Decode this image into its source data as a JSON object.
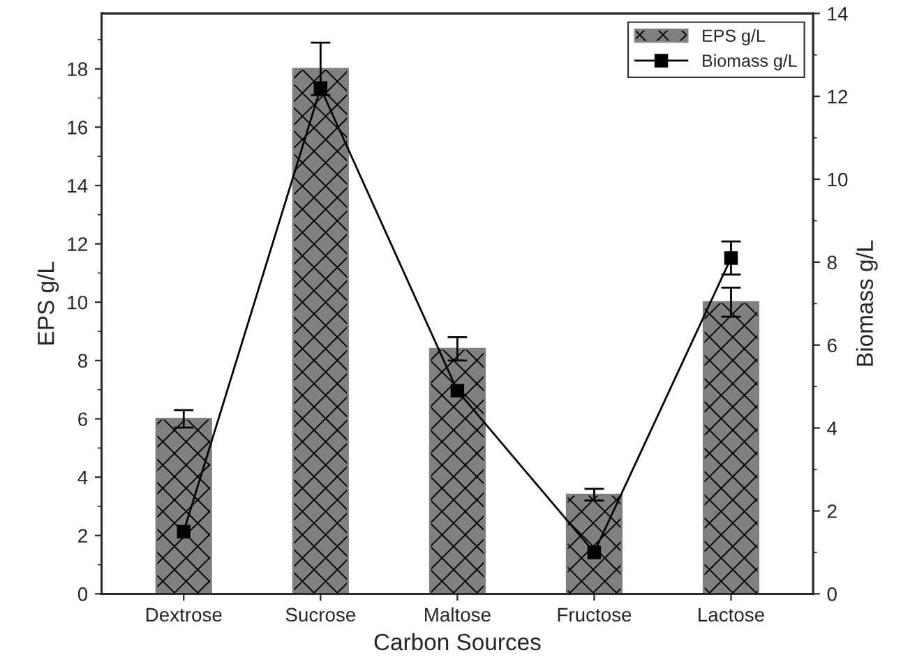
{
  "chart_data": {
    "type": "bar",
    "xlabel": "Carbon Sources",
    "ylabel": "EPS g/L",
    "y2label": "Biomass g/L",
    "categories": [
      "Dextrose",
      "Sucrose",
      "Maltose",
      "Fructose",
      "Lactose"
    ],
    "series": [
      {
        "name": "EPS g/L",
        "color": "#808080",
        "values": [
          6.0,
          18.0,
          8.4,
          3.4,
          10.0
        ],
        "errors": [
          0.3,
          0.9,
          0.4,
          0.2,
          0.5
        ]
      },
      {
        "name": "Biomass g/L",
        "type": "line",
        "axis": "y2",
        "color": "#000000",
        "marker": "square",
        "values": [
          1.5,
          12.2,
          4.9,
          1.0,
          8.1
        ],
        "errors": [
          null,
          null,
          null,
          null,
          0.4
        ]
      }
    ],
    "ylim": [
      0,
      19.9
    ],
    "yticks": [
      0,
      2,
      4,
      6,
      8,
      10,
      12,
      14,
      16,
      18
    ],
    "y2lim": [
      0,
      14
    ],
    "y2ticks": [
      0,
      2,
      4,
      6,
      8,
      10,
      12,
      14
    ],
    "legend": "top right",
    "grid": false
  }
}
